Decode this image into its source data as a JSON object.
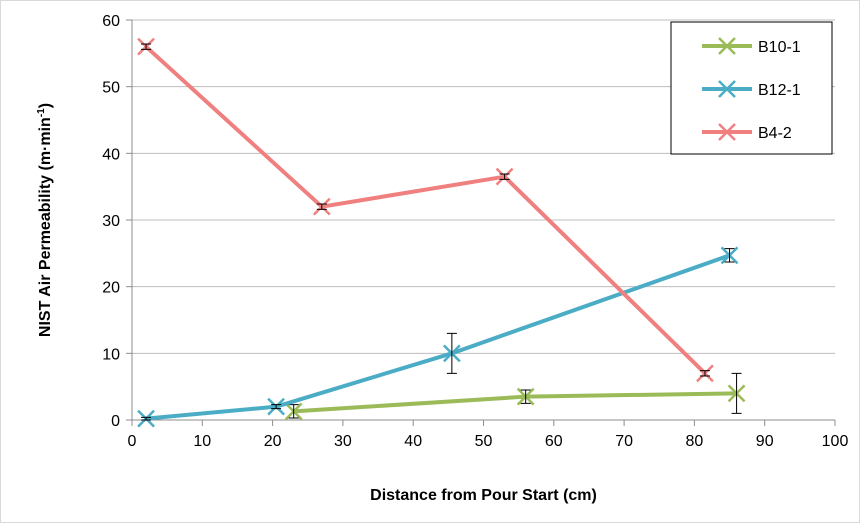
{
  "chart_data": {
    "type": "line",
    "xlabel": "Distance from Pour Start (cm)",
    "ylabel": "NIST Air Permeability (m·min",
    "ylabel_sup": "-1",
    "ylabel_end": ")",
    "xlim": [
      0,
      100
    ],
    "ylim": [
      0,
      60
    ],
    "x_ticks": [
      "0",
      "10",
      "20",
      "30",
      "40",
      "50",
      "60",
      "70",
      "80",
      "90",
      "100"
    ],
    "y_ticks": [
      "0",
      "10",
      "20",
      "30",
      "40",
      "50",
      "60"
    ],
    "grid": "horizontal",
    "legend_position": "top-right",
    "series": [
      {
        "name": "B10-1",
        "color": "#9bbb59",
        "x": [
          23,
          56,
          86
        ],
        "y": [
          1.3,
          3.5,
          4
        ],
        "err": [
          1.0,
          1.0,
          3.0
        ]
      },
      {
        "name": "B12-1",
        "color": "#4bacc6",
        "x": [
          2,
          20.5,
          45.5,
          85
        ],
        "y": [
          0.2,
          2,
          10,
          24.7
        ],
        "err": [
          0.2,
          0.3,
          3.0,
          1.0
        ]
      },
      {
        "name": "B4-2",
        "color": "#f08080",
        "x": [
          2,
          27,
          53,
          81.5
        ],
        "y": [
          56,
          32,
          36.5,
          7
        ],
        "err": [
          0.4,
          0.4,
          0.4,
          0.4
        ]
      }
    ]
  }
}
